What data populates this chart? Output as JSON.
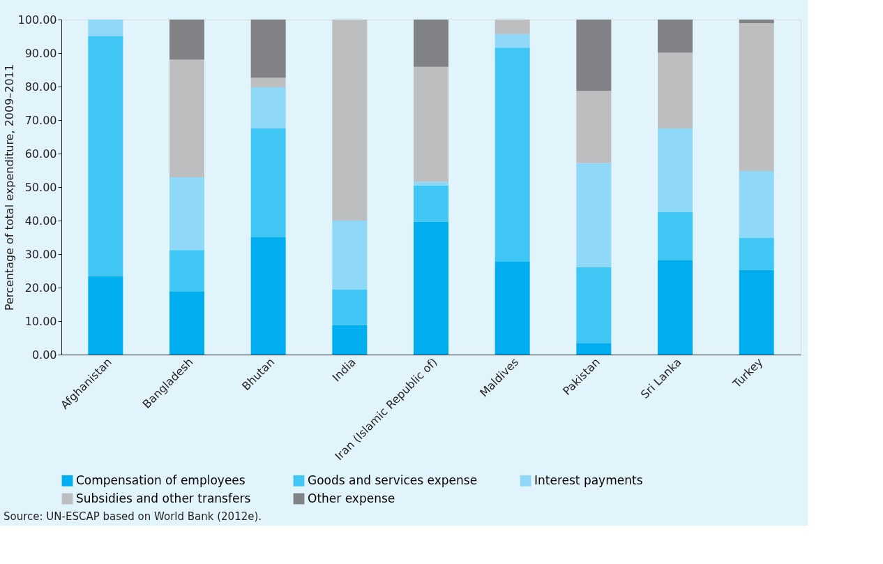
{
  "chart_data": {
    "type": "bar",
    "stacked": true,
    "ylabel": "Percentage of total expenditure, 2009–2011",
    "categories": [
      "Afghanistan",
      "Bangladesh",
      "Bhutan",
      "India",
      "Iran (Islamic Republic of)",
      "Maldives",
      "Pakistan",
      "Sri Lanka",
      "Turkey"
    ],
    "series": [
      {
        "name": "Compensation of employees",
        "color": "#00aeef",
        "values": [
          23.4,
          18.9,
          35.0,
          8.8,
          39.7,
          27.7,
          3.5,
          28.1,
          25.3
        ]
      },
      {
        "name": "Goods and services expense",
        "color": "#40c6f4",
        "values": [
          71.6,
          12.3,
          32.5,
          10.6,
          10.7,
          63.9,
          22.6,
          14.4,
          9.6
        ]
      },
      {
        "name": "Interest payments",
        "color": "#8fd8f7",
        "values": [
          5.0,
          21.7,
          12.3,
          20.6,
          1.2,
          4.1,
          31.1,
          25.0,
          19.9
        ]
      },
      {
        "name": "Subsidies and other transfers",
        "color": "#bcbec0",
        "values": [
          null,
          35.1,
          2.8,
          60.0,
          34.3,
          4.3,
          21.5,
          22.6,
          44.1
        ]
      },
      {
        "name": "Other expense",
        "color": "#808285",
        "values": [
          null,
          12.0,
          17.4,
          null,
          14.1,
          null,
          21.3,
          9.9,
          1.1
        ]
      }
    ],
    "ylim": [
      0,
      100
    ],
    "yticks": [
      {
        "value": 0,
        "label": "0.00"
      },
      {
        "value": 10,
        "label": "10.00"
      },
      {
        "value": 20,
        "label": "20.00"
      },
      {
        "value": 30,
        "label": "30.00"
      },
      {
        "value": 40,
        "label": "40.00"
      },
      {
        "value": 50,
        "label": "50.00"
      },
      {
        "value": 60,
        "label": "60.00"
      },
      {
        "value": 70,
        "label": "70.00"
      },
      {
        "value": 80,
        "label": "80.00"
      },
      {
        "value": 90,
        "label": "90.00"
      },
      {
        "value": 100,
        "label": "100.00"
      }
    ],
    "grid": false,
    "legend": "bottom",
    "annotations": [
      "Source:  UN-ESCAP based on World Bank (2012e)."
    ]
  }
}
